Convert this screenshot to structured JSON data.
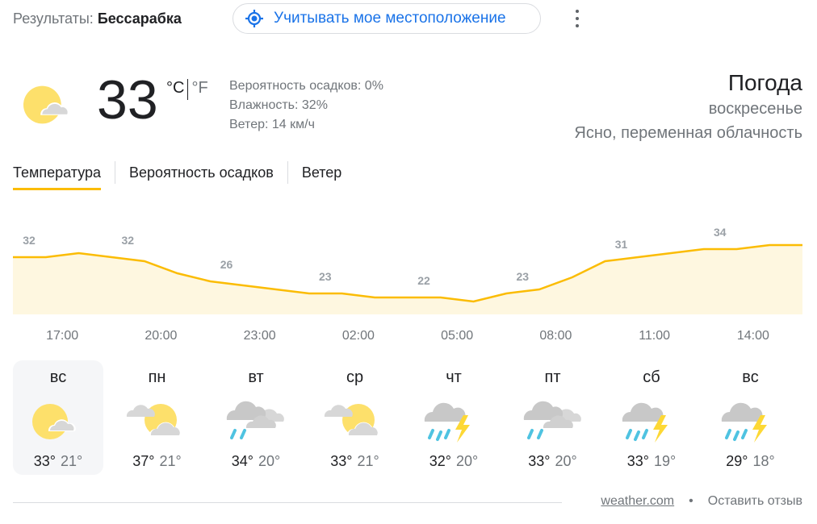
{
  "header": {
    "results_label": "Результаты:",
    "location": "Бессарабка",
    "location_button": "Учитывать мое местоположение"
  },
  "current": {
    "temp": "33",
    "unit_c": "°C",
    "unit_f": "°F",
    "icon": "sunny-cloud-icon",
    "precip": "Вероятность осадков: 0%",
    "humidity": "Влажность: 32%",
    "wind": "Ветер: 14 км/ч",
    "title": "Погода",
    "day": "воскресенье",
    "condition": "Ясно, переменная облачность"
  },
  "tabs": [
    {
      "label": "Температура",
      "selected": true
    },
    {
      "label": "Вероятность осадков"
    },
    {
      "label": "Ветер"
    }
  ],
  "chart_data": {
    "type": "area",
    "x_labels": [
      "17:00",
      "20:00",
      "23:00",
      "02:00",
      "05:00",
      "08:00",
      "11:00",
      "14:00"
    ],
    "hourly_values": [
      32,
      32,
      33,
      32,
      31,
      28,
      26,
      25,
      24,
      23,
      23,
      22,
      22,
      22,
      21,
      23,
      24,
      27,
      31,
      32,
      33,
      34,
      34,
      35,
      35
    ],
    "data_labels": [
      "32",
      "32",
      "26",
      "23",
      "22",
      "23",
      "31",
      "34"
    ],
    "line_color": "#fbbc04",
    "fill_color": "#fef7e0"
  },
  "days": [
    {
      "name": "вс",
      "icon": "sun-cloud",
      "hi": "33°",
      "lo": "21°",
      "selected": true
    },
    {
      "name": "пн",
      "icon": "partly-cloudy",
      "hi": "37°",
      "lo": "21°"
    },
    {
      "name": "вт",
      "icon": "rain",
      "hi": "34°",
      "lo": "20°"
    },
    {
      "name": "ср",
      "icon": "partly-cloudy",
      "hi": "33°",
      "lo": "21°"
    },
    {
      "name": "чт",
      "icon": "thunder",
      "hi": "32°",
      "lo": "20°"
    },
    {
      "name": "пт",
      "icon": "rain",
      "hi": "33°",
      "lo": "20°"
    },
    {
      "name": "сб",
      "icon": "thunder",
      "hi": "33°",
      "lo": "19°"
    },
    {
      "name": "вс",
      "icon": "thunder",
      "hi": "29°",
      "lo": "18°"
    }
  ],
  "footer": {
    "source": "weather.com",
    "feedback": "Оставить отзыв",
    "dot": "•"
  }
}
